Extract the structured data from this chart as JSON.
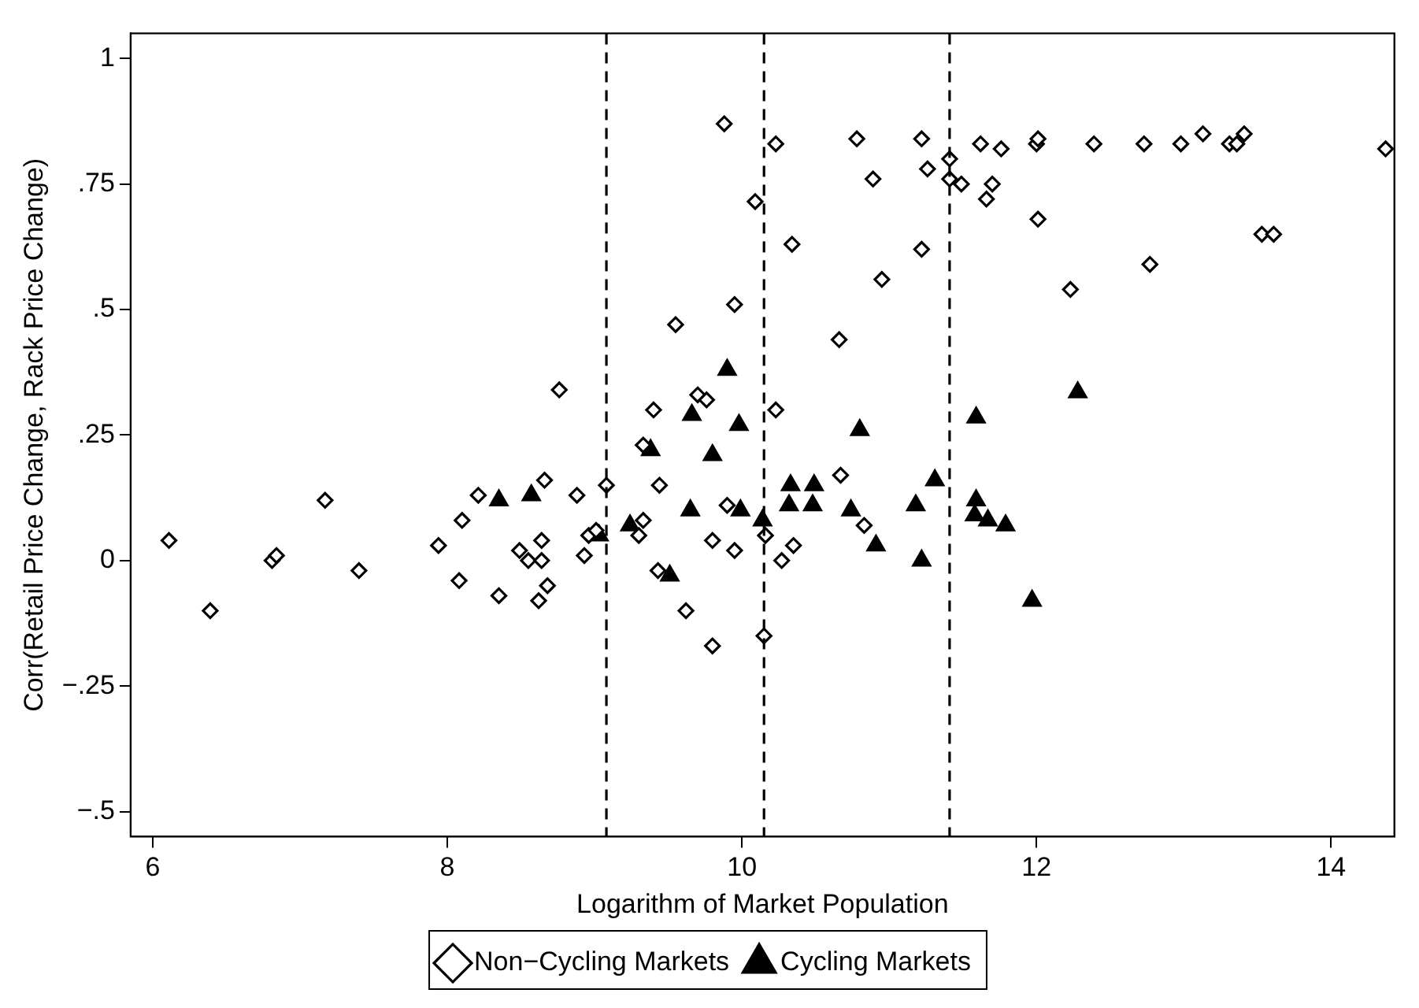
{
  "chart_data": {
    "type": "scatter",
    "xlabel": "Logarithm of Market Population",
    "ylabel": "Corr(Retail Price Change, Rack Price Change)",
    "xlim": [
      5.85,
      14.43
    ],
    "ylim": [
      -0.55,
      1.05
    ],
    "xticks": [
      6,
      8,
      10,
      12,
      14
    ],
    "yticks": [
      {
        "value": -0.5,
        "label": "−.5"
      },
      {
        "value": -0.25,
        "label": "−.25"
      },
      0,
      {
        "value": 0.25,
        "label": ".25"
      },
      {
        "value": 0.5,
        "label": ".5"
      },
      {
        "value": 0.75,
        "label": ".75"
      },
      1
    ],
    "grid": false,
    "legend": "bottom",
    "ref_lines": [
      {
        "axis": "x",
        "value": 9.08,
        "line_style": "dashed",
        "color": "#000000"
      },
      {
        "axis": "x",
        "value": 10.15,
        "line_style": "dashed",
        "color": "#000000"
      },
      {
        "axis": "x",
        "value": 11.41,
        "line_style": "dashed",
        "color": "#000000"
      }
    ],
    "series": [
      {
        "name": "Non−Cycling Markets",
        "color": "#000000",
        "marker": "diamond",
        "x": [
          6.11,
          6.39,
          6.81,
          6.84,
          7.17,
          7.4,
          7.94,
          8.08,
          8.1,
          8.21,
          8.35,
          8.49,
          8.55,
          8.64,
          8.64,
          8.62,
          8.68,
          8.66,
          8.76,
          8.88,
          8.93,
          8.96,
          9.01,
          9.08,
          9.3,
          9.33,
          9.33,
          9.4,
          9.44,
          9.43,
          9.55,
          9.62,
          9.7,
          9.76,
          9.8,
          9.8,
          9.88,
          9.9,
          9.95,
          9.95,
          10.09,
          10.16,
          10.15,
          10.23,
          10.23,
          10.27,
          10.34,
          10.35,
          10.66,
          10.67,
          10.78,
          10.83,
          10.89,
          10.95,
          11.22,
          11.22,
          11.26,
          11.41,
          11.41,
          11.49,
          11.62,
          11.66,
          11.7,
          11.76,
          12.0,
          12.01,
          12.01,
          12.23,
          12.39,
          12.73,
          12.77,
          12.98,
          13.13,
          13.31,
          13.36,
          13.41,
          13.53,
          13.61,
          14.37
        ],
        "values": [
          0.04,
          -0.1,
          0.0,
          0.01,
          0.12,
          -0.02,
          0.03,
          -0.04,
          0.08,
          0.13,
          -0.07,
          0.02,
          0.0,
          0.04,
          0.0,
          -0.08,
          -0.05,
          0.16,
          0.34,
          0.13,
          0.01,
          0.05,
          0.06,
          0.15,
          0.05,
          0.08,
          0.23,
          0.3,
          0.15,
          -0.02,
          0.47,
          -0.1,
          0.33,
          0.32,
          0.04,
          -0.17,
          0.87,
          0.11,
          0.51,
          0.02,
          0.715,
          0.05,
          -0.15,
          0.83,
          0.3,
          0.0,
          0.63,
          0.03,
          0.44,
          0.17,
          0.84,
          0.07,
          0.76,
          0.56,
          0.84,
          0.62,
          0.78,
          0.8,
          0.76,
          0.75,
          0.83,
          0.72,
          0.75,
          0.82,
          0.83,
          0.84,
          0.68,
          0.54,
          0.83,
          0.83,
          0.59,
          0.83,
          0.85,
          0.83,
          0.83,
          0.85,
          0.65,
          0.65,
          0.82
        ]
      },
      {
        "name": "Cycling Markets",
        "color": "#000000",
        "marker": "triangle",
        "x": [
          8.35,
          8.57,
          9.03,
          9.24,
          9.38,
          9.51,
          9.65,
          9.66,
          9.8,
          9.9,
          9.98,
          9.99,
          10.14,
          10.32,
          10.33,
          10.48,
          10.49,
          10.74,
          10.8,
          10.91,
          11.18,
          11.22,
          11.31,
          11.58,
          11.59,
          11.59,
          11.67,
          11.79,
          11.97,
          12.28
        ],
        "values": [
          0.12,
          0.13,
          0.05,
          0.07,
          0.22,
          -0.03,
          0.1,
          0.29,
          0.21,
          0.38,
          0.27,
          0.1,
          0.08,
          0.11,
          0.15,
          0.11,
          0.15,
          0.1,
          0.26,
          0.03,
          0.11,
          0.0,
          0.16,
          0.09,
          0.12,
          0.285,
          0.08,
          0.07,
          -0.08,
          0.335
        ]
      }
    ]
  }
}
